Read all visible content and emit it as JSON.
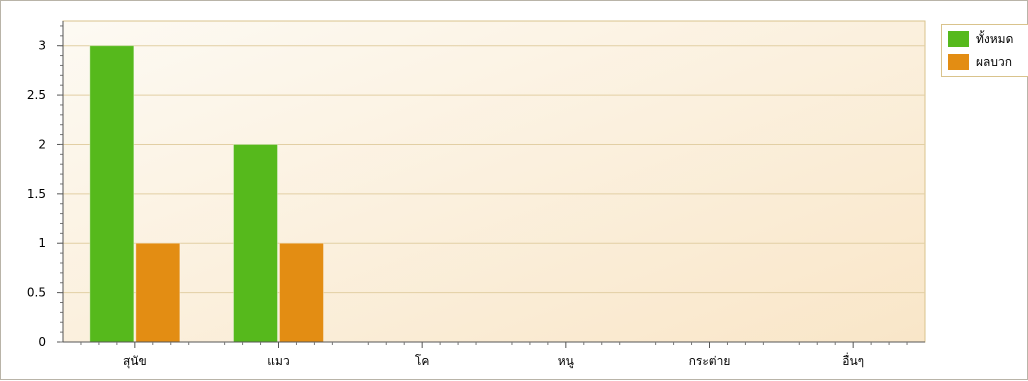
{
  "chart_data": {
    "type": "bar",
    "categories": [
      "สุนัข",
      "แมว",
      "โค",
      "หนู",
      "กระต่าย",
      "อื่นๆ"
    ],
    "series": [
      {
        "name": "ทั้งหมด",
        "values": [
          3,
          2,
          0,
          0,
          0,
          0
        ],
        "color": "#56b91c"
      },
      {
        "name": "ผลบวก",
        "values": [
          1,
          1,
          0,
          0,
          0,
          0
        ],
        "color": "#e38d13"
      }
    ],
    "ylim": [
      0,
      3.25
    ],
    "yticks": [
      "0",
      "0.5",
      "1",
      "1.5",
      "2",
      "2.5",
      "3"
    ],
    "grid": true,
    "legend_position": "right"
  }
}
